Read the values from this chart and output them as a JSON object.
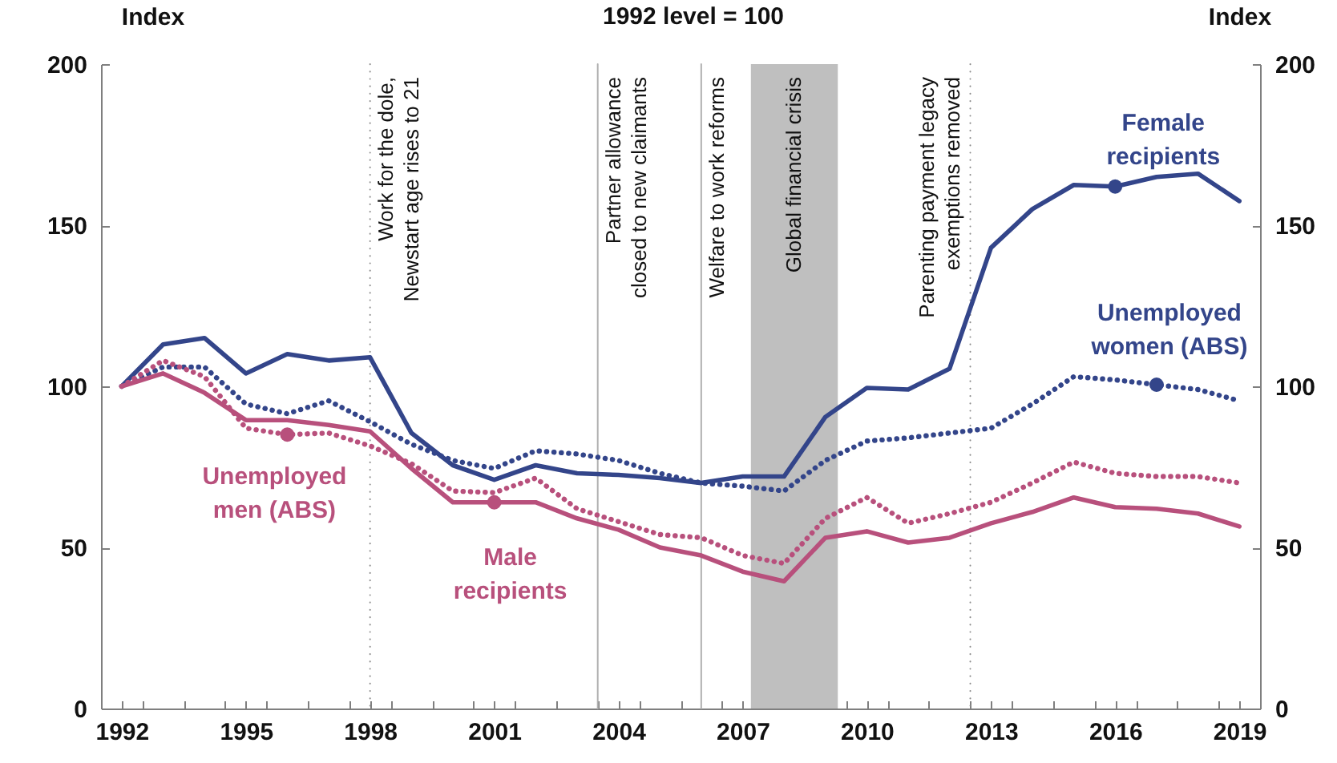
{
  "chart_data": {
    "type": "line",
    "title": "1992 level = 100",
    "ylabel": "Index",
    "y2label": "Index",
    "x": [
      1992,
      1993,
      1994,
      1995,
      1996,
      1997,
      1998,
      1999,
      2000,
      2001,
      2002,
      2003,
      2004,
      2005,
      2006,
      2007,
      2008,
      2009,
      2010,
      2011,
      2012,
      2013,
      2014,
      2015,
      2016,
      2017,
      2018,
      2019
    ],
    "series": [
      {
        "name": "Female recipients",
        "color": "#33458a",
        "line_style": "solid",
        "values": [
          100,
          113,
          115,
          104,
          110,
          108,
          109,
          85.5,
          75.5,
          71,
          75.5,
          73,
          72.5,
          71.5,
          70,
          72,
          72,
          90.5,
          99.5,
          99,
          105.5,
          143,
          155,
          162.5,
          162,
          165,
          166,
          157.5
        ]
      },
      {
        "name": "Unemployed women (ABS)",
        "color": "#33458a",
        "line_style": "dotted",
        "values": [
          100,
          106,
          106,
          94.5,
          91.5,
          95.5,
          89,
          82,
          77,
          74.5,
          80,
          79,
          77,
          73,
          70,
          69,
          67.5,
          77,
          83,
          84,
          85.5,
          87,
          94.5,
          103,
          102,
          100.5,
          99,
          95.5
        ]
      },
      {
        "name": "Male recipients",
        "color": "#b8507c",
        "line_style": "solid",
        "values": [
          100,
          104,
          98,
          89.5,
          89.5,
          88,
          86,
          74.5,
          64,
          64,
          64,
          59,
          55.5,
          50,
          47.5,
          42.5,
          39.5,
          53,
          55,
          51.5,
          53,
          57.5,
          61,
          65.5,
          62.5,
          62,
          60.5,
          56.5
        ]
      },
      {
        "name": "Unemployed men (ABS)",
        "color": "#b8507c",
        "line_style": "dotted",
        "values": [
          100,
          108,
          103,
          87,
          85,
          85.5,
          81.5,
          76,
          67.5,
          67,
          71.5,
          62,
          58,
          54,
          53,
          47.5,
          45,
          59,
          65.5,
          57.5,
          60.5,
          64,
          70,
          76.5,
          73,
          72,
          72,
          70
        ]
      }
    ],
    "xlim": [
      1991.5,
      2019.5
    ],
    "xticks": [
      1992,
      1995,
      1998,
      2001,
      2004,
      2007,
      2010,
      2013,
      2016,
      2019,
      {
        "value": 1992.5,
        "label": null
      },
      {
        "value": 1993.5,
        "label": null
      },
      {
        "value": 1994.5,
        "label": null
      },
      {
        "value": 1995.5,
        "label": null
      },
      {
        "value": 1996.5,
        "label": null
      },
      {
        "value": 1997.5,
        "label": null
      },
      {
        "value": 1998.5,
        "label": null
      },
      {
        "value": 1999.5,
        "label": null
      },
      {
        "value": 2000.5,
        "label": null
      },
      {
        "value": 2001.5,
        "label": null
      },
      {
        "value": 2002.5,
        "label": null
      },
      {
        "value": 2003.5,
        "label": null
      },
      {
        "value": 2004.5,
        "label": null
      },
      {
        "value": 2005.5,
        "label": null
      },
      {
        "value": 2006.5,
        "label": null
      },
      {
        "value": 2007.5,
        "label": null
      },
      {
        "value": 2008.5,
        "label": null
      },
      {
        "value": 2009.5,
        "label": null
      },
      {
        "value": 2010.5,
        "label": null
      },
      {
        "value": 2011.5,
        "label": null
      },
      {
        "value": 2012.5,
        "label": null
      },
      {
        "value": 2013.5,
        "label": null
      },
      {
        "value": 2014.5,
        "label": null
      },
      {
        "value": 2015.5,
        "label": null
      },
      {
        "value": 2016.5,
        "label": null
      },
      {
        "value": 2017.5,
        "label": null
      },
      {
        "value": 2018.5,
        "label": null
      }
    ],
    "ylim": [
      0,
      200
    ],
    "yticks": [
      0,
      50,
      100,
      150,
      200
    ],
    "y2lim": [
      0,
      200
    ],
    "y2ticks": [
      0,
      50,
      100,
      150,
      200
    ],
    "ref_lines": [
      {
        "axis": "x",
        "value": 1998,
        "label": "Work for the dole,\nNewstart age  rises to 21",
        "color": "#8c8c8c",
        "line_style": "dotted"
      },
      {
        "axis": "x",
        "value": 2003.5,
        "label": "Partner allowance\nclosed to new claimants",
        "color": "#b0b0b0",
        "line_style": "solid"
      },
      {
        "axis": "x",
        "value": 2006,
        "label": "Welfare to work reforms",
        "color": "#b0b0b0",
        "line_style": "solid"
      },
      {
        "axis": "x",
        "value": 2012.5,
        "label": "Parenting payment legacy\nexemptions removed",
        "color": "#8c8c8c",
        "line_style": "dotted"
      }
    ],
    "bands": [
      {
        "axis": "x",
        "from": 2007.2,
        "to": 2009.3,
        "label": "Global financial crisis",
        "color": "#bfbfbf"
      }
    ],
    "grid": false
  }
}
